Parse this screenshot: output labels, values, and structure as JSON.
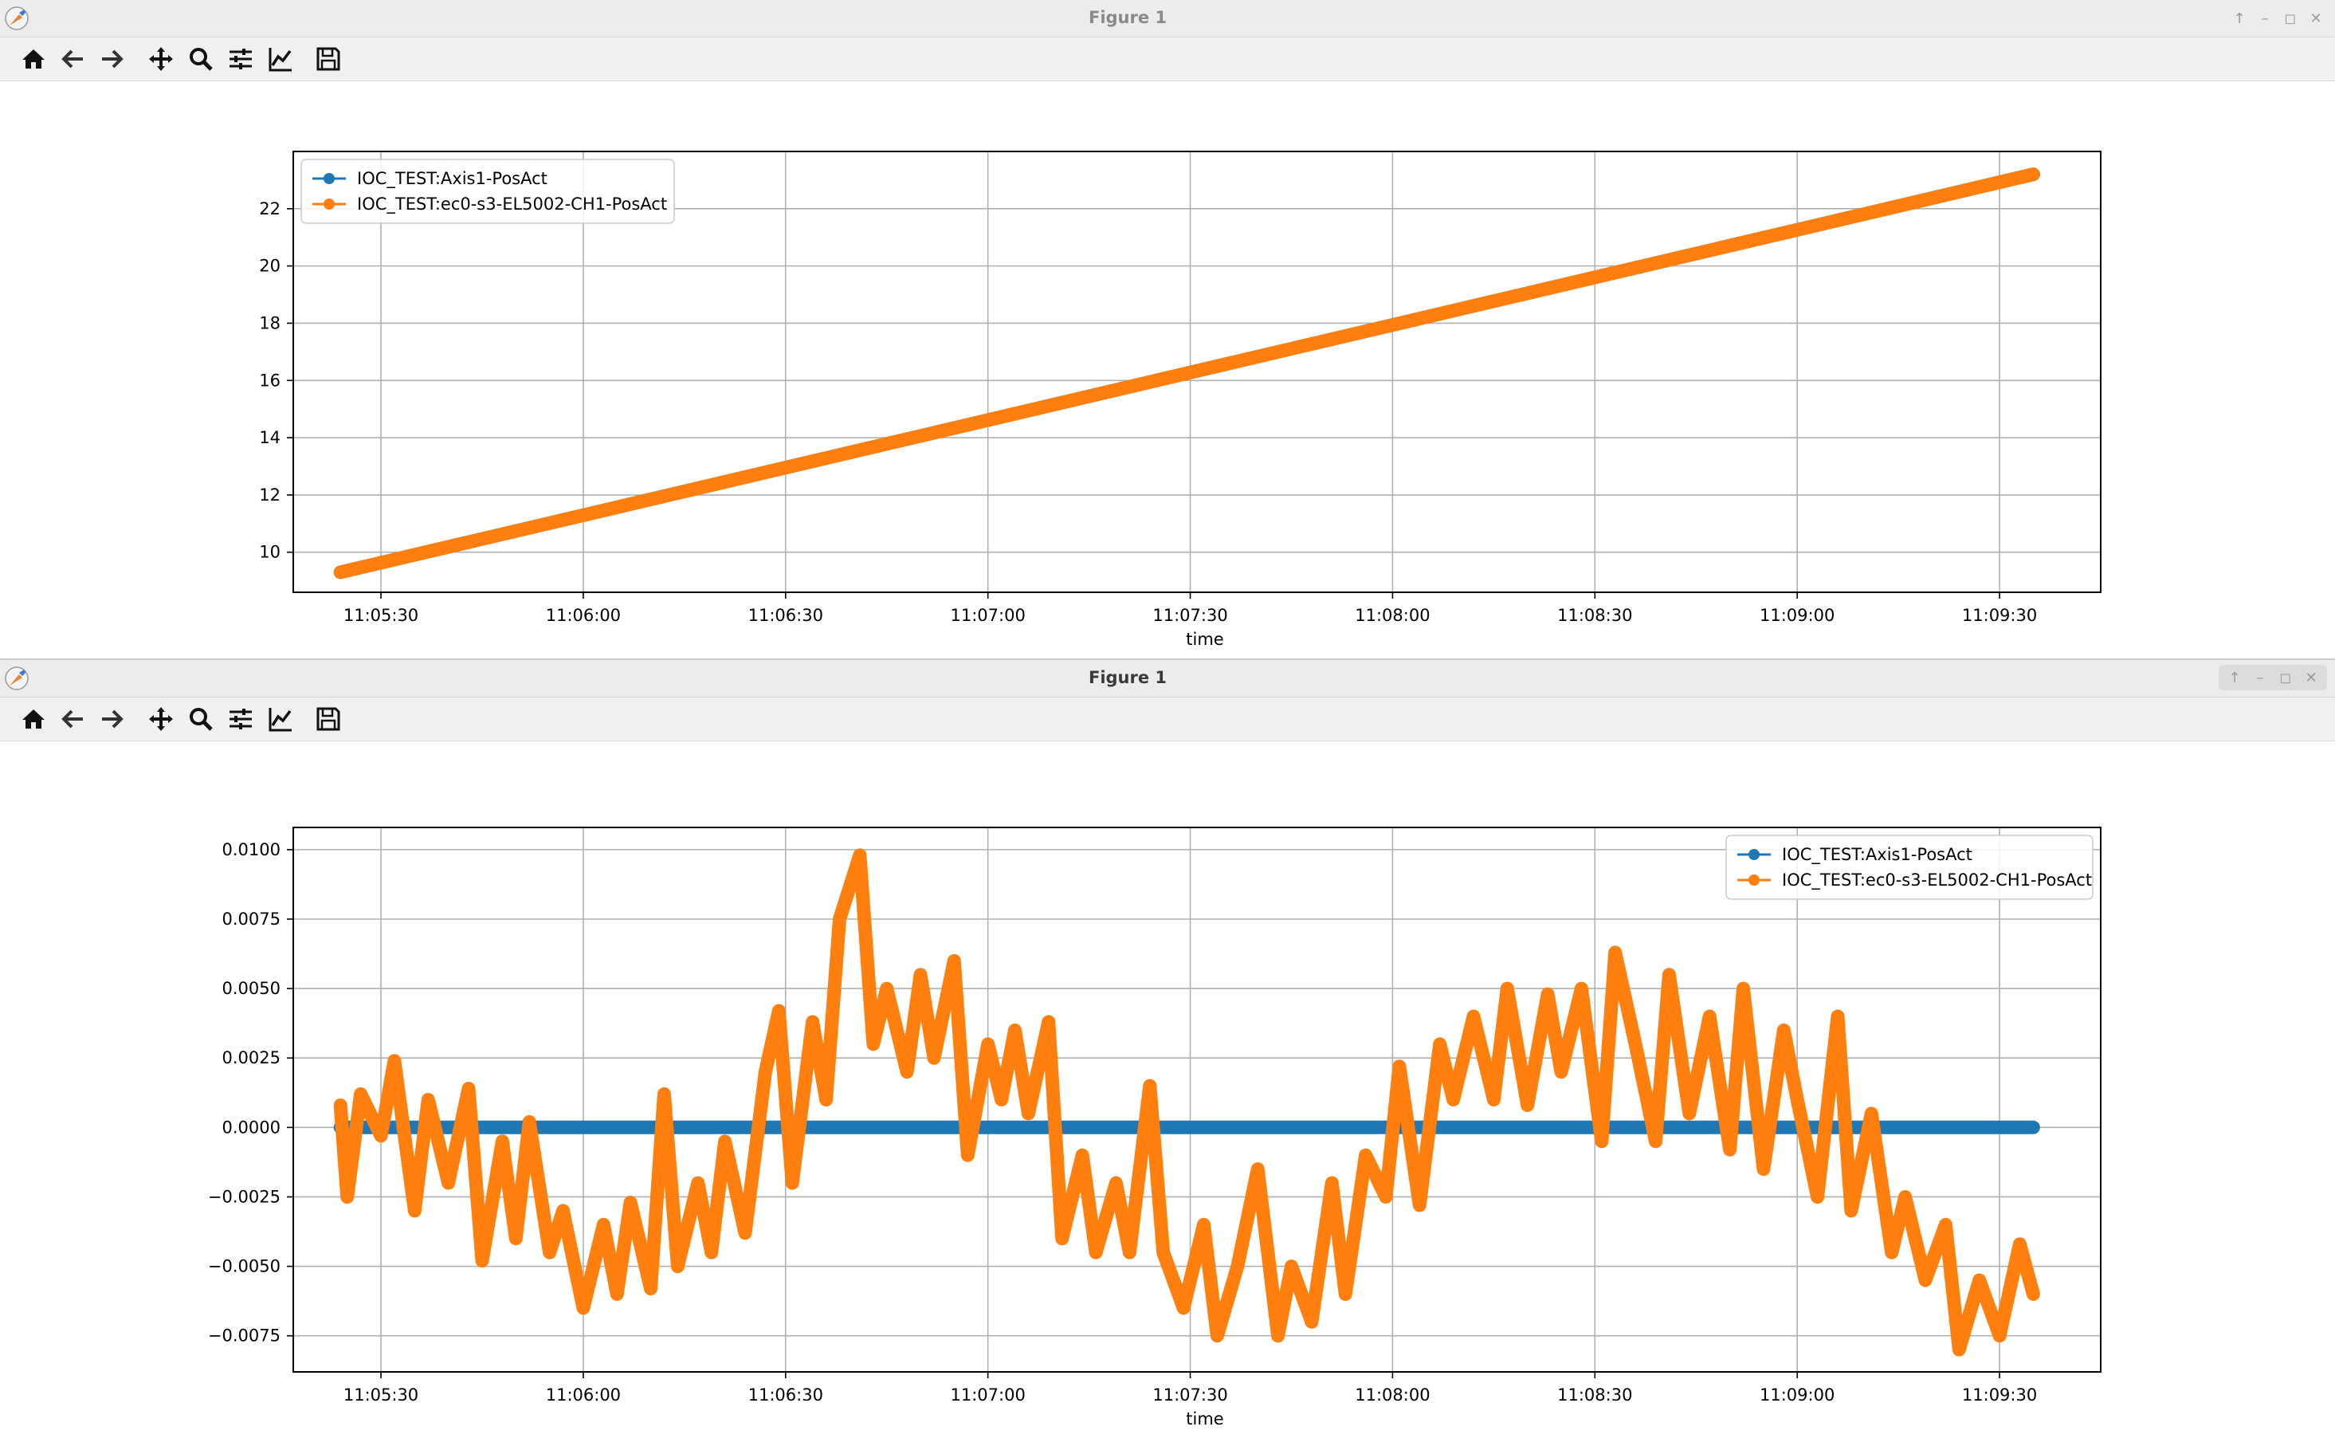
{
  "windows": [
    {
      "title": "Figure 1",
      "chart_data": {
        "type": "line",
        "xlabel": "time",
        "x_ticks": [
          "11:05:30",
          "11:06:00",
          "11:06:30",
          "11:07:00",
          "11:07:30",
          "11:08:00",
          "11:08:30",
          "11:09:00",
          "11:09:30"
        ],
        "y_ticks": [
          "10",
          "12",
          "14",
          "16",
          "18",
          "20",
          "22"
        ],
        "xlim": [
          "11:05:17",
          "11:09:45"
        ],
        "ylim": [
          8.6,
          24.0
        ],
        "grid": true,
        "legend_position": "upper-left",
        "series": [
          {
            "name": "IOC_TEST:Axis1-PosAct",
            "color": "#1f77b4",
            "x": [
              "11:05:24",
              "11:09:35"
            ],
            "values": [
              9.3,
              23.2
            ]
          },
          {
            "name": "IOC_TEST:ec0-s3-EL5002-CH1-PosAct",
            "color": "#ff7f0e",
            "x": [
              "11:05:24",
              "11:09:35"
            ],
            "values": [
              9.3,
              23.2
            ]
          }
        ]
      }
    },
    {
      "title": "Figure 1",
      "chart_data": {
        "type": "line",
        "xlabel": "time",
        "x_ticks": [
          "11:05:30",
          "11:06:00",
          "11:06:30",
          "11:07:00",
          "11:07:30",
          "11:08:00",
          "11:08:30",
          "11:09:00",
          "11:09:30"
        ],
        "y_ticks": [
          "−0.0075",
          "−0.0050",
          "−0.0025",
          "0.0000",
          "0.0025",
          "0.0050",
          "0.0075",
          "0.0100"
        ],
        "xlim": [
          "11:05:17",
          "11:09:45"
        ],
        "ylim": [
          -0.0088,
          0.0108
        ],
        "grid": true,
        "legend_position": "upper-right",
        "series": [
          {
            "name": "IOC_TEST:Axis1-PosAct",
            "color": "#1f77b4",
            "x": [
              "11:05:24",
              "11:09:35"
            ],
            "values": [
              0.0,
              0.0
            ]
          },
          {
            "name": "IOC_TEST:ec0-s3-EL5002-CH1-PosAct",
            "color": "#ff7f0e",
            "x": [
              "11:05:24",
              "11:05:25",
              "11:05:27",
              "11:05:30",
              "11:05:32",
              "11:05:35",
              "11:05:37",
              "11:05:40",
              "11:05:43",
              "11:05:45",
              "11:05:48",
              "11:05:50",
              "11:05:52",
              "11:05:55",
              "11:05:57",
              "11:06:00",
              "11:06:03",
              "11:06:05",
              "11:06:07",
              "11:06:10",
              "11:06:12",
              "11:06:14",
              "11:06:17",
              "11:06:19",
              "11:06:21",
              "11:06:24",
              "11:06:27",
              "11:06:29",
              "11:06:31",
              "11:06:34",
              "11:06:36",
              "11:06:38",
              "11:06:41",
              "11:06:43",
              "11:06:45",
              "11:06:48",
              "11:06:50",
              "11:06:52",
              "11:06:55",
              "11:06:57",
              "11:07:00",
              "11:07:02",
              "11:07:04",
              "11:07:06",
              "11:07:09",
              "11:07:11",
              "11:07:14",
              "11:07:16",
              "11:07:19",
              "11:07:21",
              "11:07:24",
              "11:07:26",
              "11:07:29",
              "11:07:32",
              "11:07:34",
              "11:07:37",
              "11:07:40",
              "11:07:43",
              "11:07:45",
              "11:07:48",
              "11:07:51",
              "11:07:53",
              "11:07:56",
              "11:07:59",
              "11:08:01",
              "11:08:04",
              "11:08:07",
              "11:08:09",
              "11:08:12",
              "11:08:15",
              "11:08:17",
              "11:08:20",
              "11:08:23",
              "11:08:25",
              "11:08:28",
              "11:08:31",
              "11:08:33",
              "11:08:36",
              "11:08:39",
              "11:08:41",
              "11:08:44",
              "11:08:47",
              "11:08:50",
              "11:08:52",
              "11:08:55",
              "11:08:58",
              "11:09:00",
              "11:09:03",
              "11:09:06",
              "11:09:08",
              "11:09:11",
              "11:09:14",
              "11:09:16",
              "11:09:19",
              "11:09:22",
              "11:09:24",
              "11:09:27",
              "11:09:30",
              "11:09:33",
              "11:09:35"
            ],
            "values": [
              0.0008,
              -0.0025,
              0.0012,
              -0.0003,
              0.0024,
              -0.003,
              0.001,
              -0.002,
              0.0014,
              -0.0048,
              -0.0005,
              -0.004,
              0.0002,
              -0.0045,
              -0.003,
              -0.0065,
              -0.0035,
              -0.006,
              -0.0027,
              -0.0058,
              0.0012,
              -0.005,
              -0.002,
              -0.0045,
              -0.0005,
              -0.0038,
              0.002,
              0.0042,
              -0.002,
              0.0038,
              0.001,
              0.0075,
              0.0098,
              0.003,
              0.005,
              0.002,
              0.0055,
              0.0025,
              0.006,
              -0.001,
              0.003,
              0.001,
              0.0035,
              0.0005,
              0.0038,
              -0.004,
              -0.001,
              -0.0045,
              -0.002,
              -0.0045,
              0.0015,
              -0.0045,
              -0.0065,
              -0.0035,
              -0.0075,
              -0.005,
              -0.0015,
              -0.0075,
              -0.005,
              -0.007,
              -0.002,
              -0.006,
              -0.001,
              -0.0025,
              0.0022,
              -0.0028,
              0.003,
              0.001,
              0.004,
              0.001,
              0.005,
              0.0008,
              0.0048,
              0.002,
              0.005,
              -0.0005,
              0.0063,
              0.003,
              -0.0005,
              0.0055,
              0.0005,
              0.004,
              -0.0008,
              0.005,
              -0.0015,
              0.0035,
              0.001,
              -0.0025,
              0.004,
              -0.003,
              0.0005,
              -0.0045,
              -0.0025,
              -0.0055,
              -0.0035,
              -0.008,
              -0.0055,
              -0.0075,
              -0.0042,
              -0.006
            ]
          }
        ]
      }
    }
  ]
}
